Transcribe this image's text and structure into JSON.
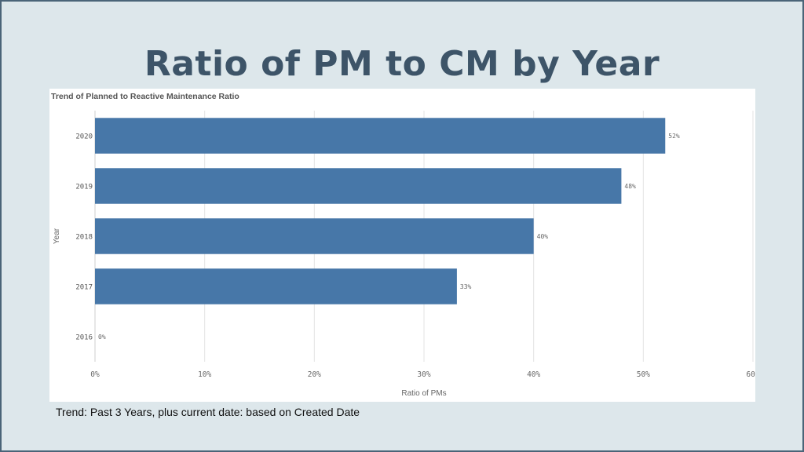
{
  "slide": {
    "title": "Ratio of PM to CM by Year",
    "footer": "Trend: Past 3 Years, plus current date: based on Created Date"
  },
  "chart_data": {
    "type": "bar",
    "orientation": "horizontal",
    "title": "Trend of Planned to Reactive Maintenance Ratio",
    "xlabel": "Ratio of PMs",
    "ylabel": "Year",
    "categories": [
      "2020",
      "2019",
      "2018",
      "2017",
      "2016"
    ],
    "values": [
      52,
      48,
      40,
      33,
      0
    ],
    "value_labels": [
      "52%",
      "48%",
      "40%",
      "33%",
      "0%"
    ],
    "xlim": [
      0,
      60
    ],
    "xticks": [
      "0%",
      "10%",
      "20%",
      "30%",
      "40%",
      "50%",
      "60%"
    ],
    "grid": true,
    "bar_color": "#4777a8"
  }
}
